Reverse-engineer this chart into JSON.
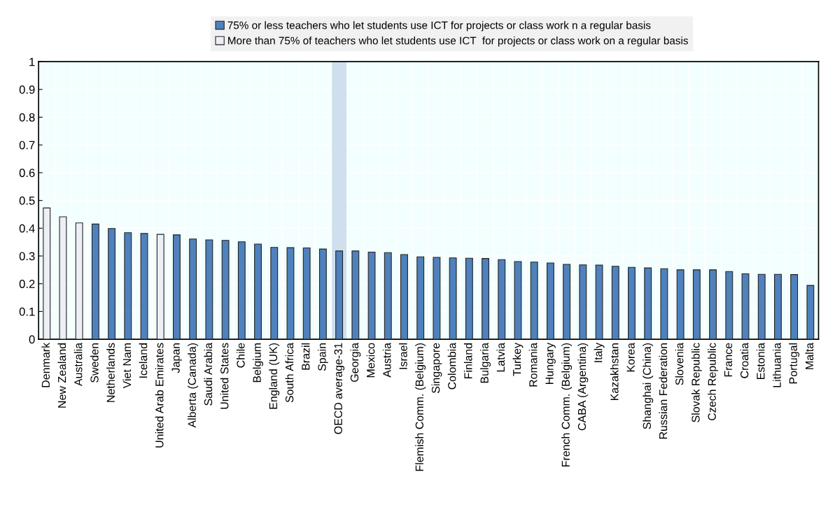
{
  "chart_data": {
    "type": "bar",
    "categories": [
      "Denmark",
      "New Zealand",
      "Australia",
      "Sweden",
      "Netherlands",
      "Viet Nam",
      "Iceland",
      "United Arab Emirates",
      "Japan",
      "Alberta (Canada)",
      "Saudi Arabia",
      "United States",
      "Chile",
      "Belgium",
      "England (UK)",
      "South Africa",
      "Brazil",
      "Spain",
      "OECD average-31",
      "Georgia",
      "Mexico",
      "Austria",
      "Israel",
      "Flemish Comm. (Belgium)",
      "Singapore",
      "Colombia",
      "Finland",
      "Bulgaria",
      "Latvia",
      "Turkey",
      "Romania",
      "Hungary",
      "French Comm. (Belgium)",
      "CABA (Argentina)",
      "Italy",
      "Kazakhstan",
      "Korea",
      "Shanghai (China)",
      "Russian Federation",
      "Slovenia",
      "Slovak Republic",
      "Czech Republic",
      "France",
      "Croatia",
      "Estonia",
      "Lithuania",
      "Portugal",
      "Malta"
    ],
    "series": [
      {
        "name": "75% or less teachers who let students use ICT for projects or class work n a regular basis",
        "color": "#4f81bd",
        "values": [
          null,
          null,
          null,
          0.415,
          0.399,
          0.384,
          0.381,
          null,
          0.376,
          0.361,
          0.358,
          0.356,
          0.351,
          0.343,
          0.331,
          0.33,
          0.329,
          0.325,
          0.318,
          0.318,
          0.314,
          0.312,
          0.305,
          0.297,
          0.295,
          0.293,
          0.292,
          0.291,
          0.287,
          0.28,
          0.278,
          0.275,
          0.27,
          0.268,
          0.267,
          0.263,
          0.259,
          0.257,
          0.254,
          0.25,
          0.25,
          0.25,
          0.244,
          0.236,
          0.234,
          0.234,
          0.233,
          0.194
        ]
      },
      {
        "name": "More than 75% of teachers who let students use ICT  for projects or class work on a regular basis",
        "color": "#eeeef6",
        "values": [
          0.473,
          0.441,
          0.419,
          null,
          null,
          null,
          null,
          0.378,
          null,
          null,
          null,
          null,
          null,
          null,
          null,
          null,
          null,
          null,
          null,
          null,
          null,
          null,
          null,
          null,
          null,
          null,
          null,
          null,
          null,
          null,
          null,
          null,
          null,
          null,
          null,
          null,
          null,
          null,
          null,
          null,
          null,
          null,
          null,
          null,
          null,
          null,
          null,
          null
        ]
      }
    ],
    "ylim": [
      0,
      1
    ],
    "yticks": [
      0,
      0.1,
      0.2,
      0.3,
      0.4,
      0.5,
      0.6,
      0.7,
      0.8,
      0.9,
      1
    ],
    "bands": [
      {
        "axis": "x",
        "from": "OECD average-31",
        "to": "OECD average-31",
        "color": "#cfdfee"
      }
    ],
    "grid": true,
    "legend": "top"
  }
}
